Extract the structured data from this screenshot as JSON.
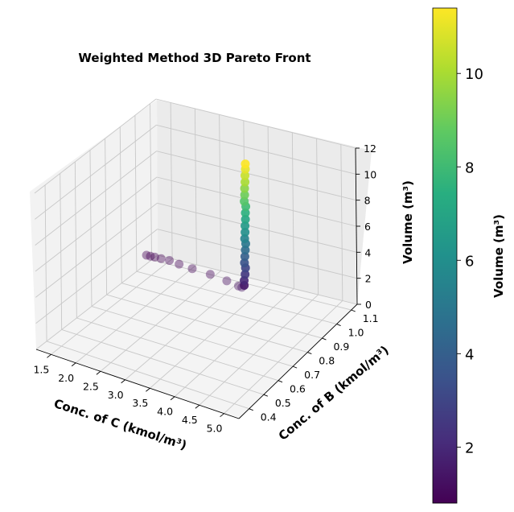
{
  "chart_data": {
    "type": "scatter",
    "title": "Weighted Method 3D Pareto Front",
    "xlabel": "Conc. of C (kmol/m³)",
    "ylabel": "Conc. of B (kmol/m³)",
    "zlabel": "Volume (m³)",
    "xlim": [
      1.2,
      5.3
    ],
    "ylim": [
      0.33,
      1.14
    ],
    "zlim": [
      0,
      12
    ],
    "xticks": [
      "1.5",
      "2.0",
      "2.5",
      "3.0",
      "3.5",
      "4.0",
      "4.5",
      "5.0"
    ],
    "yticks": [
      "0.4",
      "0.5",
      "0.6",
      "0.7",
      "0.8",
      "0.9",
      "1.0",
      "1.1"
    ],
    "zticks": [
      "0",
      "2",
      "4",
      "6",
      "8",
      "10",
      "12"
    ],
    "colorbar": {
      "label": "Volume (m³)",
      "colormap": "viridis",
      "range": [
        0.8,
        11.4
      ],
      "ticks": [
        "2",
        "4",
        "6",
        "8",
        "10"
      ]
    },
    "grid": true,
    "points": [
      {
        "x": 1.25,
        "y": 1.05,
        "z": 0.85
      },
      {
        "x": 1.33,
        "y": 1.05,
        "z": 0.85
      },
      {
        "x": 1.42,
        "y": 1.05,
        "z": 0.87
      },
      {
        "x": 1.55,
        "y": 1.05,
        "z": 0.88
      },
      {
        "x": 1.72,
        "y": 1.05,
        "z": 0.9
      },
      {
        "x": 1.95,
        "y": 1.04,
        "z": 0.93
      },
      {
        "x": 2.25,
        "y": 1.03,
        "z": 0.97
      },
      {
        "x": 2.65,
        "y": 1.02,
        "z": 1.02
      },
      {
        "x": 3.05,
        "y": 1.0,
        "z": 1.1
      },
      {
        "x": 3.35,
        "y": 0.98,
        "z": 1.2
      },
      {
        "x": 3.45,
        "y": 0.97,
        "z": 1.3
      },
      {
        "x": 3.5,
        "y": 0.97,
        "z": 1.5
      },
      {
        "x": 3.53,
        "y": 0.96,
        "z": 2.0
      },
      {
        "x": 3.55,
        "y": 0.96,
        "z": 2.5
      },
      {
        "x": 3.56,
        "y": 0.96,
        "z": 3.0
      },
      {
        "x": 3.57,
        "y": 0.95,
        "z": 3.5
      },
      {
        "x": 3.58,
        "y": 0.95,
        "z": 4.0
      },
      {
        "x": 3.59,
        "y": 0.95,
        "z": 4.5
      },
      {
        "x": 3.6,
        "y": 0.95,
        "z": 5.0
      },
      {
        "x": 3.61,
        "y": 0.94,
        "z": 5.5
      },
      {
        "x": 3.62,
        "y": 0.94,
        "z": 6.0
      },
      {
        "x": 3.62,
        "y": 0.94,
        "z": 6.5
      },
      {
        "x": 3.63,
        "y": 0.94,
        "z": 7.0
      },
      {
        "x": 3.63,
        "y": 0.94,
        "z": 7.5
      },
      {
        "x": 3.64,
        "y": 0.94,
        "z": 8.0
      },
      {
        "x": 3.64,
        "y": 0.93,
        "z": 8.5
      },
      {
        "x": 3.65,
        "y": 0.93,
        "z": 9.0
      },
      {
        "x": 3.65,
        "y": 0.93,
        "z": 9.5
      },
      {
        "x": 3.66,
        "y": 0.93,
        "z": 10.0
      },
      {
        "x": 3.66,
        "y": 0.93,
        "z": 10.5
      },
      {
        "x": 3.67,
        "y": 0.93,
        "z": 11.0
      },
      {
        "x": 3.67,
        "y": 0.93,
        "z": 11.4
      }
    ]
  }
}
